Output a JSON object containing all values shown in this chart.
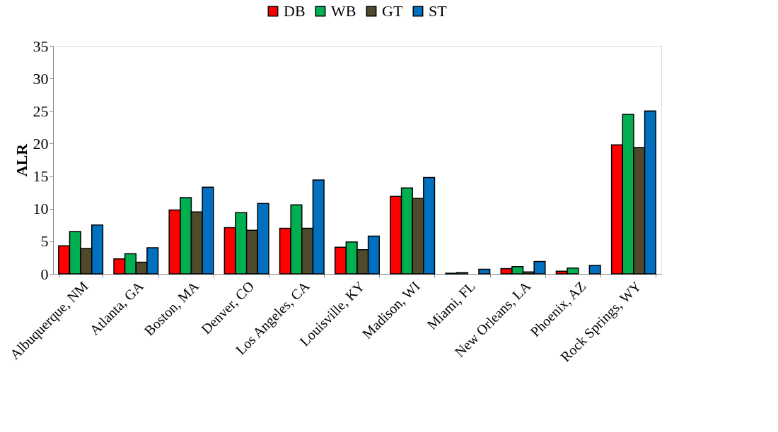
{
  "chart_data": {
    "type": "bar",
    "ylabel": "ALR",
    "categories": [
      "Albuquerque, NM",
      "Atlanta, GA",
      "Boston, MA",
      "Denver, CO",
      "Los Angeles, CA",
      "Louisville, KY",
      "Madison, WI",
      "Miami, FL",
      "New Orleans, LA",
      "Phoenix, AZ",
      "Rock Springs, WY"
    ],
    "series": [
      {
        "name": "DB",
        "color": "#ff0000",
        "values": [
          4.3,
          2.3,
          9.8,
          7.1,
          7.0,
          4.1,
          11.9,
          0.1,
          0.8,
          0.4,
          19.8
        ]
      },
      {
        "name": "WB",
        "color": "#00b050",
        "values": [
          6.5,
          3.1,
          11.7,
          9.4,
          10.6,
          4.9,
          13.2,
          0.2,
          1.1,
          0.9,
          24.5
        ]
      },
      {
        "name": "GT",
        "color": "#4f4a2c",
        "values": [
          3.9,
          1.8,
          9.5,
          6.7,
          7.0,
          3.7,
          11.6,
          null,
          0.3,
          null,
          19.4
        ]
      },
      {
        "name": "ST",
        "color": "#0070c0",
        "values": [
          7.5,
          4.0,
          13.3,
          10.8,
          14.4,
          5.8,
          14.8,
          0.7,
          1.9,
          1.3,
          25.0
        ]
      }
    ],
    "ylim": [
      0,
      35
    ],
    "yticks": [
      0,
      5,
      10,
      15,
      20,
      25,
      30,
      35
    ],
    "grid": false,
    "legend": "top"
  }
}
